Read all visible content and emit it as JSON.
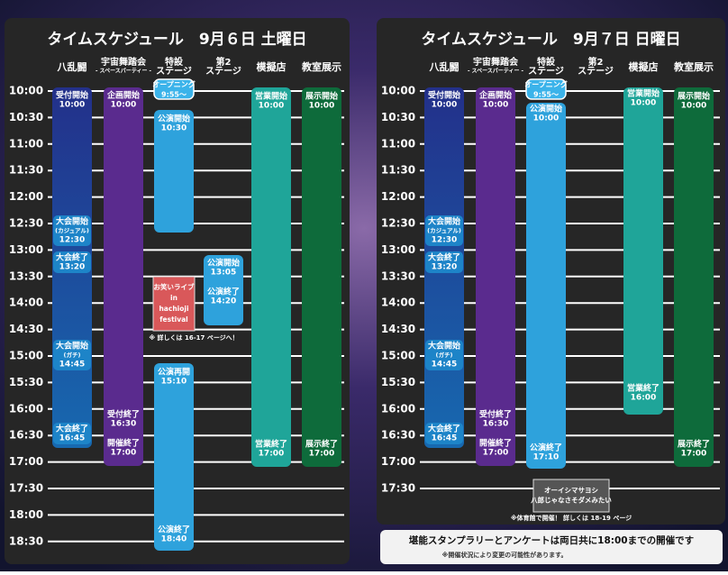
{
  "panels": [
    {
      "title": "タイムスケジュール　9月６日 土曜日",
      "columns": [
        [
          "八乱闘"
        ],
        [
          "宇宙舞踏会",
          "- スペースパーティー -"
        ],
        [
          "特設",
          "ステージ"
        ],
        [
          "第2",
          "ステージ"
        ],
        [
          "模擬店"
        ],
        [
          "教室展示"
        ]
      ],
      "times": [
        "10:00",
        "10:30",
        "11:00",
        "11:30",
        "12:00",
        "12:30",
        "13:00",
        "13:30",
        "14:00",
        "14:30",
        "15:00",
        "15:30",
        "16:00",
        "16:30",
        "17:00",
        "17:30",
        "18:00",
        "18:30"
      ],
      "blocks": [
        {
          "groups": [
            [
              "受付開始",
              "10:00"
            ],
            [
              "大会開始",
              "(カジュアル)",
              "12:30"
            ],
            [
              "大会終了",
              "13:20"
            ],
            [
              "大会開始",
              "(ガチ)",
              "14:45"
            ],
            [
              "大会終了",
              "16:45"
            ]
          ]
        },
        {
          "groups": [
            [
              "企画開始",
              "10:00"
            ],
            [
              "受付終了",
              "16:30"
            ],
            [
              "開催終了",
              "17:00"
            ]
          ]
        },
        {
          "groups": [
            [
              "オープニング",
              "9:55～"
            ]
          ]
        },
        {
          "groups": [
            [
              "公演開始",
              "10:30"
            ]
          ]
        },
        {
          "groups": [
            [
              "公演再開",
              "15:10"
            ],
            [
              "公演終了",
              "18:40"
            ]
          ]
        },
        {
          "groups": [
            [
              "公演開始",
              "13:05"
            ],
            [
              "公演終了",
              "14:20"
            ]
          ]
        },
        {
          "groups": [
            [
              "営業開始",
              "10:00"
            ],
            [
              "営業終了",
              "17:00"
            ]
          ]
        },
        {
          "groups": [
            [
              "展示開始",
              "10:00"
            ],
            [
              "展示終了",
              "17:00"
            ]
          ]
        }
      ],
      "image": [
        "お笑いライブ",
        "in",
        "hachioji",
        "festival"
      ],
      "note": "※ 詳しくは 16-17 ページへ！"
    },
    {
      "title": "タイムスケジュール　9月７日 日曜日",
      "columns": [
        [
          "八乱闘"
        ],
        [
          "宇宙舞踏会",
          "- スペースパーティー -"
        ],
        [
          "特設",
          "ステージ"
        ],
        [
          "第2",
          "ステージ"
        ],
        [
          "模擬店"
        ],
        [
          "教室展示"
        ]
      ],
      "times": [
        "10:00",
        "10:30",
        "11:00",
        "11:30",
        "12:00",
        "12:30",
        "13:00",
        "13:30",
        "14:00",
        "14:30",
        "15:00",
        "15:30",
        "16:00",
        "16:30",
        "17:00",
        "17:30"
      ],
      "blocks": [
        {
          "groups": [
            [
              "受付開始",
              "10:00"
            ],
            [
              "大会開始",
              "(カジュアル)",
              "12:30"
            ],
            [
              "大会終了",
              "13:20"
            ],
            [
              "大会開始",
              "(ガチ)",
              "14:45"
            ],
            [
              "大会終了",
              "16:45"
            ]
          ]
        },
        {
          "groups": [
            [
              "企画開始",
              "10:00"
            ],
            [
              "受付終了",
              "16:30"
            ],
            [
              "開催終了",
              "17:00"
            ]
          ]
        },
        {
          "groups": [
            [
              "オープニング",
              "9:55～"
            ]
          ]
        },
        {
          "groups": [
            [
              "公演開始",
              "10:00"
            ],
            [
              "公演終了",
              "17:10"
            ]
          ]
        },
        {
          "groups": [
            [
              "営業開始",
              "10:00"
            ],
            [
              "営業終了",
              "16:00"
            ]
          ]
        },
        {
          "groups": [
            [
              "展示開始",
              "10:00"
            ],
            [
              "展示終了",
              "17:00"
            ]
          ]
        }
      ],
      "image": [
        "オーイシマサヨシ",
        "八郎じゃなさそダメみたい"
      ],
      "note": "※体育館で開催！ 詳しくは 18-19 ページ"
    }
  ],
  "banner": {
    "text": "堪能スタンプラリーとアンケートは両日共に18:00までの開催です",
    "note": "※開催状況により変更の可能性があります。"
  }
}
